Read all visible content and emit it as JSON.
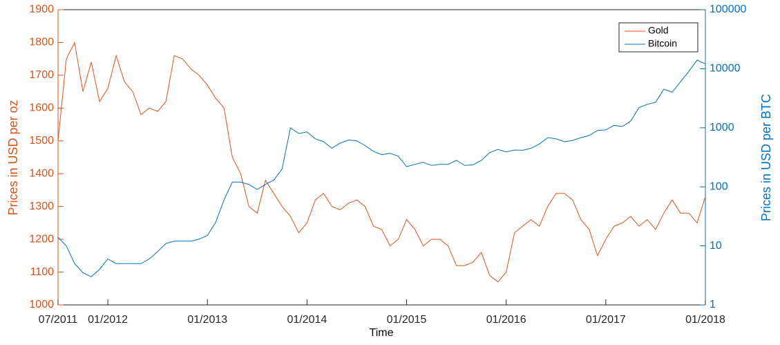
{
  "chart_data": {
    "type": "line",
    "xlabel": "Time",
    "ylabel": "Prices in USD per oz",
    "y2label": "Prices in USD per BTC",
    "x": [
      "07/2011",
      "08/2011",
      "09/2011",
      "10/2011",
      "11/2011",
      "12/2011",
      "01/2012",
      "02/2012",
      "03/2012",
      "04/2012",
      "05/2012",
      "06/2012",
      "07/2012",
      "08/2012",
      "09/2012",
      "10/2012",
      "11/2012",
      "12/2012",
      "01/2013",
      "02/2013",
      "03/2013",
      "04/2013",
      "05/2013",
      "06/2013",
      "07/2013",
      "08/2013",
      "09/2013",
      "10/2013",
      "11/2013",
      "12/2013",
      "01/2014",
      "02/2014",
      "03/2014",
      "04/2014",
      "05/2014",
      "06/2014",
      "07/2014",
      "08/2014",
      "09/2014",
      "10/2014",
      "11/2014",
      "12/2014",
      "01/2015",
      "02/2015",
      "03/2015",
      "04/2015",
      "05/2015",
      "06/2015",
      "07/2015",
      "08/2015",
      "09/2015",
      "10/2015",
      "11/2015",
      "12/2015",
      "01/2016",
      "02/2016",
      "03/2016",
      "04/2016",
      "05/2016",
      "06/2016",
      "07/2016",
      "08/2016",
      "09/2016",
      "10/2016",
      "11/2016",
      "12/2016",
      "01/2017",
      "02/2017",
      "03/2017",
      "04/2017",
      "05/2017",
      "06/2017",
      "07/2017",
      "08/2017",
      "09/2017",
      "10/2017",
      "11/2017",
      "12/2017",
      "01/2018"
    ],
    "xlim": [
      "07/2011",
      "01/2018"
    ],
    "xticks": [
      "07/2011",
      "01/2012",
      "01/2013",
      "01/2014",
      "01/2015",
      "01/2016",
      "01/2017",
      "01/2018"
    ],
    "ylim": [
      1000,
      1900
    ],
    "yticks": [
      1000,
      1100,
      1200,
      1300,
      1400,
      1500,
      1600,
      1700,
      1800,
      1900
    ],
    "y2lim": [
      1,
      100000
    ],
    "y2ticks": [
      1,
      10,
      100,
      1000,
      10000,
      100000
    ],
    "y2scale": "log",
    "legend": "upper right",
    "series": [
      {
        "name": "Gold",
        "color": "#d95319",
        "axis": "y",
        "values": [
          1500,
          1750,
          1800,
          1650,
          1740,
          1620,
          1660,
          1760,
          1680,
          1650,
          1580,
          1600,
          1590,
          1620,
          1760,
          1750,
          1720,
          1700,
          1670,
          1630,
          1600,
          1450,
          1400,
          1300,
          1280,
          1380,
          1340,
          1300,
          1270,
          1220,
          1250,
          1320,
          1340,
          1300,
          1290,
          1310,
          1320,
          1300,
          1240,
          1230,
          1180,
          1200,
          1260,
          1230,
          1180,
          1200,
          1200,
          1180,
          1120,
          1120,
          1130,
          1160,
          1090,
          1070,
          1100,
          1220,
          1240,
          1260,
          1240,
          1300,
          1340,
          1340,
          1320,
          1260,
          1230,
          1150,
          1200,
          1240,
          1250,
          1270,
          1240,
          1260,
          1230,
          1280,
          1320,
          1280,
          1280,
          1250,
          1330
        ]
      },
      {
        "name": "Bitcoin",
        "color": "#0072bd",
        "axis": "y2",
        "values": [
          14,
          10,
          5,
          3.5,
          3,
          4,
          6,
          5,
          5,
          5,
          5,
          6,
          8,
          11,
          12,
          12,
          12,
          13,
          15,
          25,
          60,
          120,
          120,
          110,
          90,
          110,
          130,
          200,
          1000,
          800,
          850,
          650,
          580,
          450,
          550,
          620,
          600,
          500,
          400,
          350,
          370,
          330,
          220,
          240,
          260,
          230,
          240,
          240,
          280,
          230,
          235,
          280,
          380,
          430,
          390,
          420,
          415,
          450,
          530,
          680,
          650,
          580,
          610,
          680,
          740,
          900,
          920,
          1100,
          1050,
          1300,
          2200,
          2500,
          2700,
          4500,
          4000,
          6000,
          9000,
          14000,
          12000
        ]
      }
    ]
  }
}
